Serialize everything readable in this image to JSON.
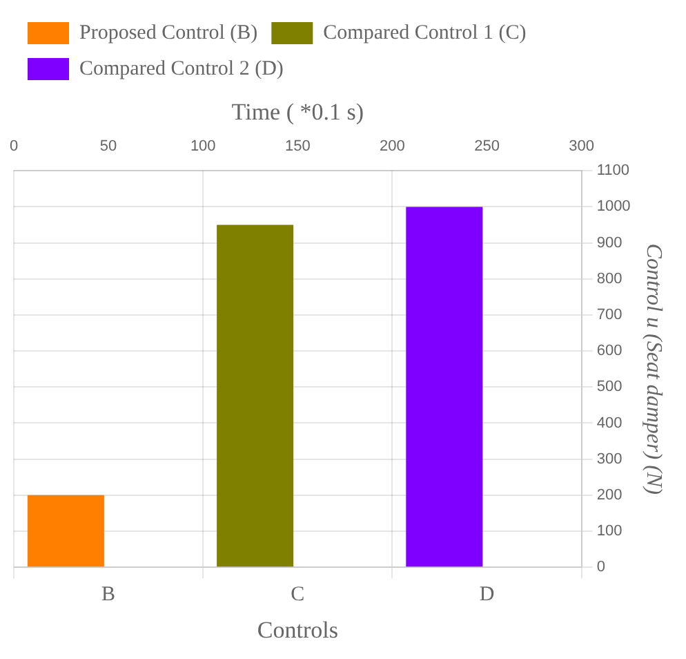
{
  "chart_data": {
    "type": "bar",
    "xlabel": "Controls",
    "ylabel": "Control u (Seat damper) (N)",
    "x2label": "Time ( *0.1 s)",
    "categories": [
      "B",
      "C",
      "D"
    ],
    "series": [
      {
        "name": "Proposed Control (B)",
        "color": "#ff8000",
        "values": [
          200,
          null,
          null
        ]
      },
      {
        "name": "Compared Control 1 (C)",
        "color": "#808000",
        "values": [
          null,
          950,
          null
        ]
      },
      {
        "name": "Compared Control 2 (D)",
        "color": "#8000ff",
        "values": [
          null,
          null,
          1000
        ]
      }
    ],
    "ylim": [
      0,
      1100
    ],
    "yticks": [
      0,
      100,
      200,
      300,
      400,
      500,
      600,
      700,
      800,
      900,
      1000,
      1100
    ],
    "x2lim": [
      0,
      300
    ],
    "x2ticks": [
      0,
      50,
      100,
      150,
      200,
      250,
      300
    ],
    "grid": true,
    "legend": "top left"
  }
}
